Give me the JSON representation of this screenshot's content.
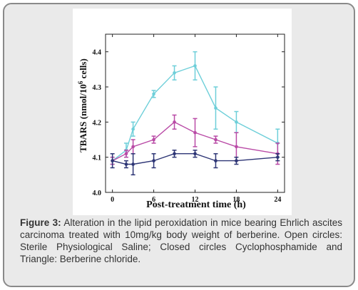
{
  "caption": {
    "label": "Figure 3:",
    "text": "Alteration in the lipid peroxidation in mice bearing Ehrlich ascites carcinoma treated with 10mg/kg body weight of berberine. Open circles: Sterile Physiological Saline; Closed circles Cyclophosphamide and Triangle: Berberine chloride."
  },
  "chart_data": {
    "type": "line",
    "xlabel": "Post-treatment time (h)",
    "ylabel_parts": [
      "TBARS (nmol/10",
      "6",
      " cells)"
    ],
    "xlim": [
      -1,
      25
    ],
    "ylim": [
      4.0,
      4.45
    ],
    "xticks": [
      0,
      6,
      12,
      18,
      24
    ],
    "xtick_labels": [
      "0",
      "6",
      "12",
      "18",
      "24"
    ],
    "yticks": [
      4.0,
      4.1,
      4.2,
      4.3,
      4.4
    ],
    "ytick_labels": [
      "4.0",
      "4.1",
      "4.2",
      "4.3",
      "4.4"
    ],
    "grid": false,
    "series": [
      {
        "color": "#6ecfd9",
        "x": [
          0,
          2,
          3,
          6,
          9,
          12,
          15,
          18,
          24
        ],
        "y": [
          4.09,
          4.12,
          4.18,
          4.28,
          4.34,
          4.36,
          4.24,
          4.2,
          4.14
        ],
        "err": [
          0.01,
          0.02,
          0.02,
          0.01,
          0.02,
          0.04,
          0.06,
          0.03,
          0.04
        ]
      },
      {
        "color": "#b94aa6",
        "x": [
          0,
          2,
          3,
          6,
          9,
          12,
          15,
          18,
          24
        ],
        "y": [
          4.09,
          4.11,
          4.13,
          4.15,
          4.2,
          4.17,
          4.15,
          4.13,
          4.11
        ],
        "err": [
          0.01,
          0.01,
          0.02,
          0.01,
          0.02,
          0.04,
          0.01,
          0.04,
          0.03
        ]
      },
      {
        "color": "#2d3575",
        "x": [
          0,
          2,
          3,
          6,
          9,
          12,
          15,
          18,
          24
        ],
        "y": [
          4.09,
          4.08,
          4.08,
          4.09,
          4.11,
          4.11,
          4.09,
          4.09,
          4.1
        ],
        "err": [
          0.02,
          0.01,
          0.03,
          0.02,
          0.01,
          0.01,
          0.02,
          0.01,
          0.01
        ]
      }
    ]
  }
}
